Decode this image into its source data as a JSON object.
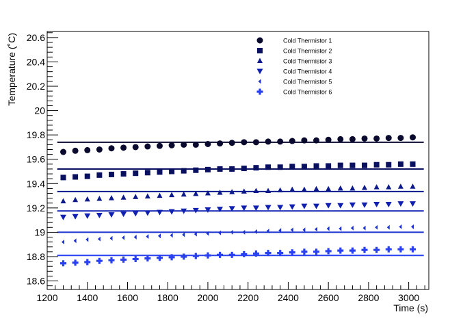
{
  "chart_data": {
    "type": "scatter",
    "title": "",
    "xlabel": "Time (s)",
    "ylabel": "Temperature (˚C)",
    "xlim": [
      1200,
      3100
    ],
    "ylim": [
      18.53,
      20.65
    ],
    "x_ticks": [
      1200,
      1400,
      1600,
      1800,
      2000,
      2200,
      2400,
      2600,
      2800,
      3000
    ],
    "x_tick_labels": [
      "1200",
      "1400",
      "1600",
      "1800",
      "2000",
      "2200",
      "2400",
      "2600",
      "2800",
      "3000"
    ],
    "y_ticks": [
      18.6,
      18.8,
      19,
      19.2,
      19.4,
      19.6,
      19.8,
      20,
      20.2,
      20.4,
      20.6
    ],
    "y_tick_labels": [
      "18.6",
      "18.8",
      "19",
      "19.2",
      "19.4",
      "19.6",
      "19.8",
      "20",
      "20.2",
      "20.4",
      "20.6"
    ],
    "grid": false,
    "legend_position": "top-center",
    "x": [
      1280,
      1340,
      1400,
      1460,
      1520,
      1580,
      1640,
      1700,
      1760,
      1820,
      1880,
      1940,
      2000,
      2060,
      2120,
      2180,
      2240,
      2300,
      2360,
      2420,
      2480,
      2540,
      2600,
      2660,
      2720,
      2780,
      2840,
      2900,
      2960,
      3020
    ],
    "series": [
      {
        "name": "Cold Thermistor 1",
        "marker": "circle",
        "color": "#0a0a2e",
        "fit": 19.74,
        "values": [
          19.66,
          19.67,
          19.675,
          19.68,
          19.69,
          19.695,
          19.7,
          19.705,
          19.71,
          19.715,
          19.72,
          19.72,
          19.725,
          19.73,
          19.735,
          19.74,
          19.74,
          19.745,
          19.745,
          19.75,
          19.755,
          19.755,
          19.76,
          19.765,
          19.765,
          19.77,
          19.77,
          19.775,
          19.775,
          19.78
        ]
      },
      {
        "name": "Cold Thermistor 2",
        "marker": "square",
        "color": "#0a1060",
        "fit": 19.52,
        "values": [
          19.45,
          19.455,
          19.46,
          19.47,
          19.475,
          19.48,
          19.485,
          19.49,
          19.495,
          19.5,
          19.505,
          19.51,
          19.515,
          19.52,
          19.52,
          19.525,
          19.53,
          19.535,
          19.535,
          19.54,
          19.54,
          19.545,
          19.545,
          19.55,
          19.55,
          19.55,
          19.555,
          19.555,
          19.56,
          19.56
        ]
      },
      {
        "name": "Cold Thermistor 3",
        "marker": "triangle-up",
        "color": "#0d1a8c",
        "fit": 19.335,
        "values": [
          19.255,
          19.265,
          19.27,
          19.275,
          19.28,
          19.285,
          19.29,
          19.295,
          19.3,
          19.305,
          19.31,
          19.315,
          19.32,
          19.325,
          19.33,
          19.335,
          19.34,
          19.34,
          19.345,
          19.35,
          19.35,
          19.355,
          19.355,
          19.36,
          19.36,
          19.365,
          19.37,
          19.37,
          19.375,
          19.375
        ]
      },
      {
        "name": "Cold Thermistor 4",
        "marker": "triangle-down",
        "color": "#1020b0",
        "fit": 19.175,
        "values": [
          19.125,
          19.13,
          19.135,
          19.14,
          19.145,
          19.15,
          19.155,
          19.16,
          19.165,
          19.17,
          19.175,
          19.18,
          19.185,
          19.19,
          19.195,
          19.2,
          19.2,
          19.205,
          19.205,
          19.21,
          19.215,
          19.215,
          19.22,
          19.22,
          19.225,
          19.225,
          19.23,
          19.23,
          19.235,
          19.235
        ]
      },
      {
        "name": "Cold Thermistor 5",
        "marker": "diamond-left",
        "color": "#1a30d0",
        "fit": 19.0,
        "values": [
          18.92,
          18.93,
          18.94,
          18.945,
          18.95,
          18.955,
          18.96,
          18.965,
          18.97,
          18.975,
          18.98,
          18.985,
          18.99,
          18.995,
          19.0,
          19.0,
          19.005,
          19.01,
          19.015,
          19.02,
          19.02,
          19.025,
          19.03,
          19.03,
          19.035,
          19.035,
          19.04,
          19.04,
          19.045,
          19.045
        ]
      },
      {
        "name": "Cold Thermistor 6",
        "marker": "cross",
        "color": "#2840f0",
        "fit": 18.81,
        "values": [
          18.745,
          18.75,
          18.755,
          18.765,
          18.77,
          18.775,
          18.78,
          18.785,
          18.79,
          18.795,
          18.8,
          18.805,
          18.81,
          18.815,
          18.815,
          18.82,
          18.825,
          18.83,
          18.83,
          18.835,
          18.84,
          18.84,
          18.845,
          18.85,
          18.85,
          18.855,
          18.855,
          18.86,
          18.86,
          18.86
        ]
      }
    ]
  }
}
